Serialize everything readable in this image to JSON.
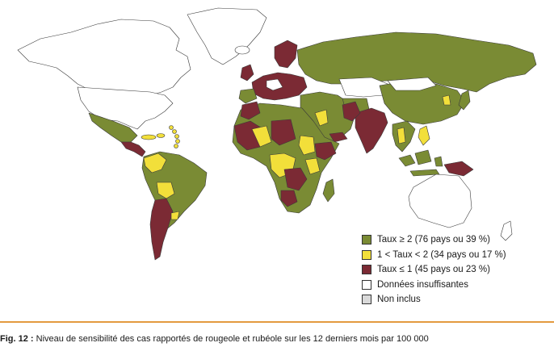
{
  "legend": {
    "items": [
      {
        "label": "Taux ≥ 2 (76 pays ou 39 %)",
        "color": "#7a8b34"
      },
      {
        "label": "1 < Taux < 2 (34 pays ou 17 %)",
        "color": "#f2df3a"
      },
      {
        "label": "Taux ≤ 1 (45 pays ou 23 %)",
        "color": "#7b2a34"
      },
      {
        "label": "Données insuffisantes",
        "color": "#ffffff"
      },
      {
        "label": "Non inclus",
        "color": "#d9d9d9"
      }
    ]
  },
  "caption": {
    "label": "Fig. 12 :",
    "text": "Niveau de sensibilité des cas rapportés de rougeole et rubéole sur les 12 derniers mois par 100 000"
  },
  "colors": {
    "frame_border": "#e39a3f",
    "ocean": "#ffffff",
    "country_border": "#3a3a3a"
  }
}
